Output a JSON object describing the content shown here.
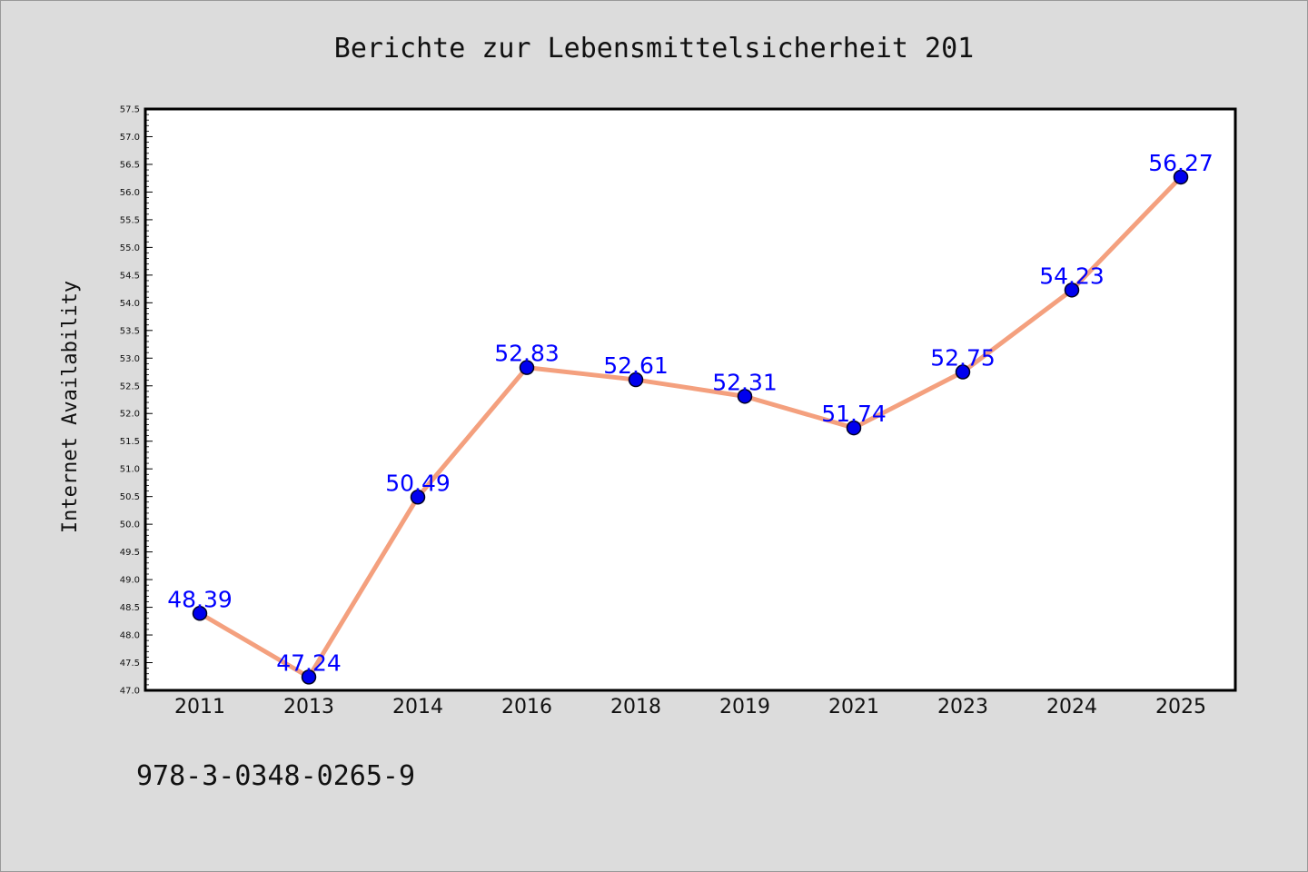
{
  "footer": {
    "isbn": "978-3-0348-0265-9"
  },
  "chart_data": {
    "type": "line",
    "title": "Berichte zur Lebensmittelsicherheit 201",
    "xlabel": "",
    "ylabel": "Internet Availability",
    "categories": [
      "2011",
      "2013",
      "2014",
      "2016",
      "2018",
      "2019",
      "2021",
      "2023",
      "2024",
      "2025"
    ],
    "values": [
      48.39,
      47.24,
      50.49,
      52.83,
      52.61,
      52.31,
      51.74,
      52.75,
      54.23,
      56.27
    ],
    "data_labels": [
      "48.39",
      "47.24",
      "50.49",
      "52.83",
      "52.61",
      "52.31",
      "51.74",
      "52.75",
      "54.23",
      "56.27"
    ],
    "ylim": [
      47.0,
      57.5
    ],
    "y_ticks": [
      "47.0",
      "47.5",
      "48.0",
      "48.5",
      "49.0",
      "49.5",
      "50.0",
      "50.5",
      "51.0",
      "51.5",
      "52.0",
      "52.5",
      "53.0",
      "53.5",
      "54.0",
      "54.5",
      "55.0",
      "55.5",
      "56.0",
      "56.5",
      "57.0",
      "57.5"
    ],
    "grid": false,
    "colors": {
      "line": "#f4a07e",
      "marker": "#0000ee",
      "label": "#0000ff",
      "background": "#dcdcdc",
      "plot_background": "#ffffff"
    }
  }
}
